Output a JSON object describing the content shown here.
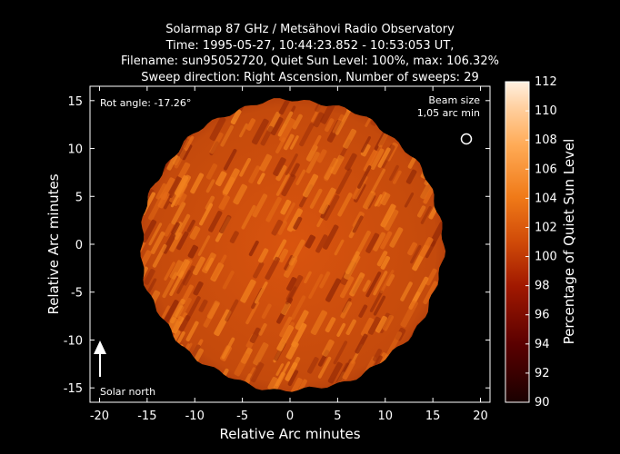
{
  "title_lines": [
    "Solarmap 87 GHz / Metsähovi Radio Observatory",
    "Time: 1995-05-27, 10:44:23.852 - 10:53:053 UT,",
    "Filename: sun95052720, Quiet Sun Level: 100%, max: 106.32%",
    "Sweep direction: Right Ascension, Number of sweeps: 29"
  ],
  "axes": {
    "xlabel": "Relative Arc minutes",
    "ylabel": "Relative Arc minutes",
    "xlim": [
      -21,
      21
    ],
    "ylim": [
      -16.5,
      16.5
    ],
    "xticks": [
      "-20",
      "-15",
      "-10",
      "-5",
      "0",
      "5",
      "10",
      "15",
      "20"
    ],
    "yticks": [
      "15",
      "10",
      "5",
      "0",
      "-5",
      "-10",
      "-15"
    ]
  },
  "annotations": {
    "rot_angle": "Rot angle: -17.26°",
    "beam_size_line1": "Beam size",
    "beam_size_line2": "1,05 arc min",
    "solar_north": "Solar north"
  },
  "colorbar": {
    "label": "Percentage of Quiet Sun Level",
    "ticks": [
      "112",
      "110",
      "108",
      "106",
      "104",
      "102",
      "100",
      "98",
      "96",
      "94",
      "92",
      "90"
    ],
    "range": [
      90,
      112
    ]
  },
  "colors": {
    "background": "#000000",
    "sun_base": "#c8460a",
    "sun_bright": "#f07a1a",
    "sun_dark": "#8a1e04"
  }
}
